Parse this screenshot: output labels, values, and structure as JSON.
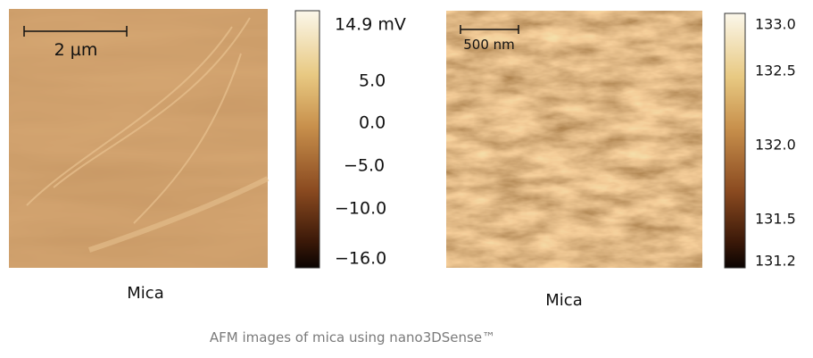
{
  "panels": [
    {
      "scale_bar": "2 µm",
      "colorbar_ticks": [
        "14.9 mV",
        "5.0",
        "0.0",
        "−5.0",
        "−10.0",
        "−16.0"
      ],
      "label": "Mica"
    },
    {
      "scale_bar": "500 nm",
      "colorbar_ticks": [
        "133.0",
        "132.5",
        "132.0",
        "131.5",
        "131.2"
      ],
      "label": "Mica"
    }
  ],
  "caption": "AFM images of mica using nano3DSense™"
}
